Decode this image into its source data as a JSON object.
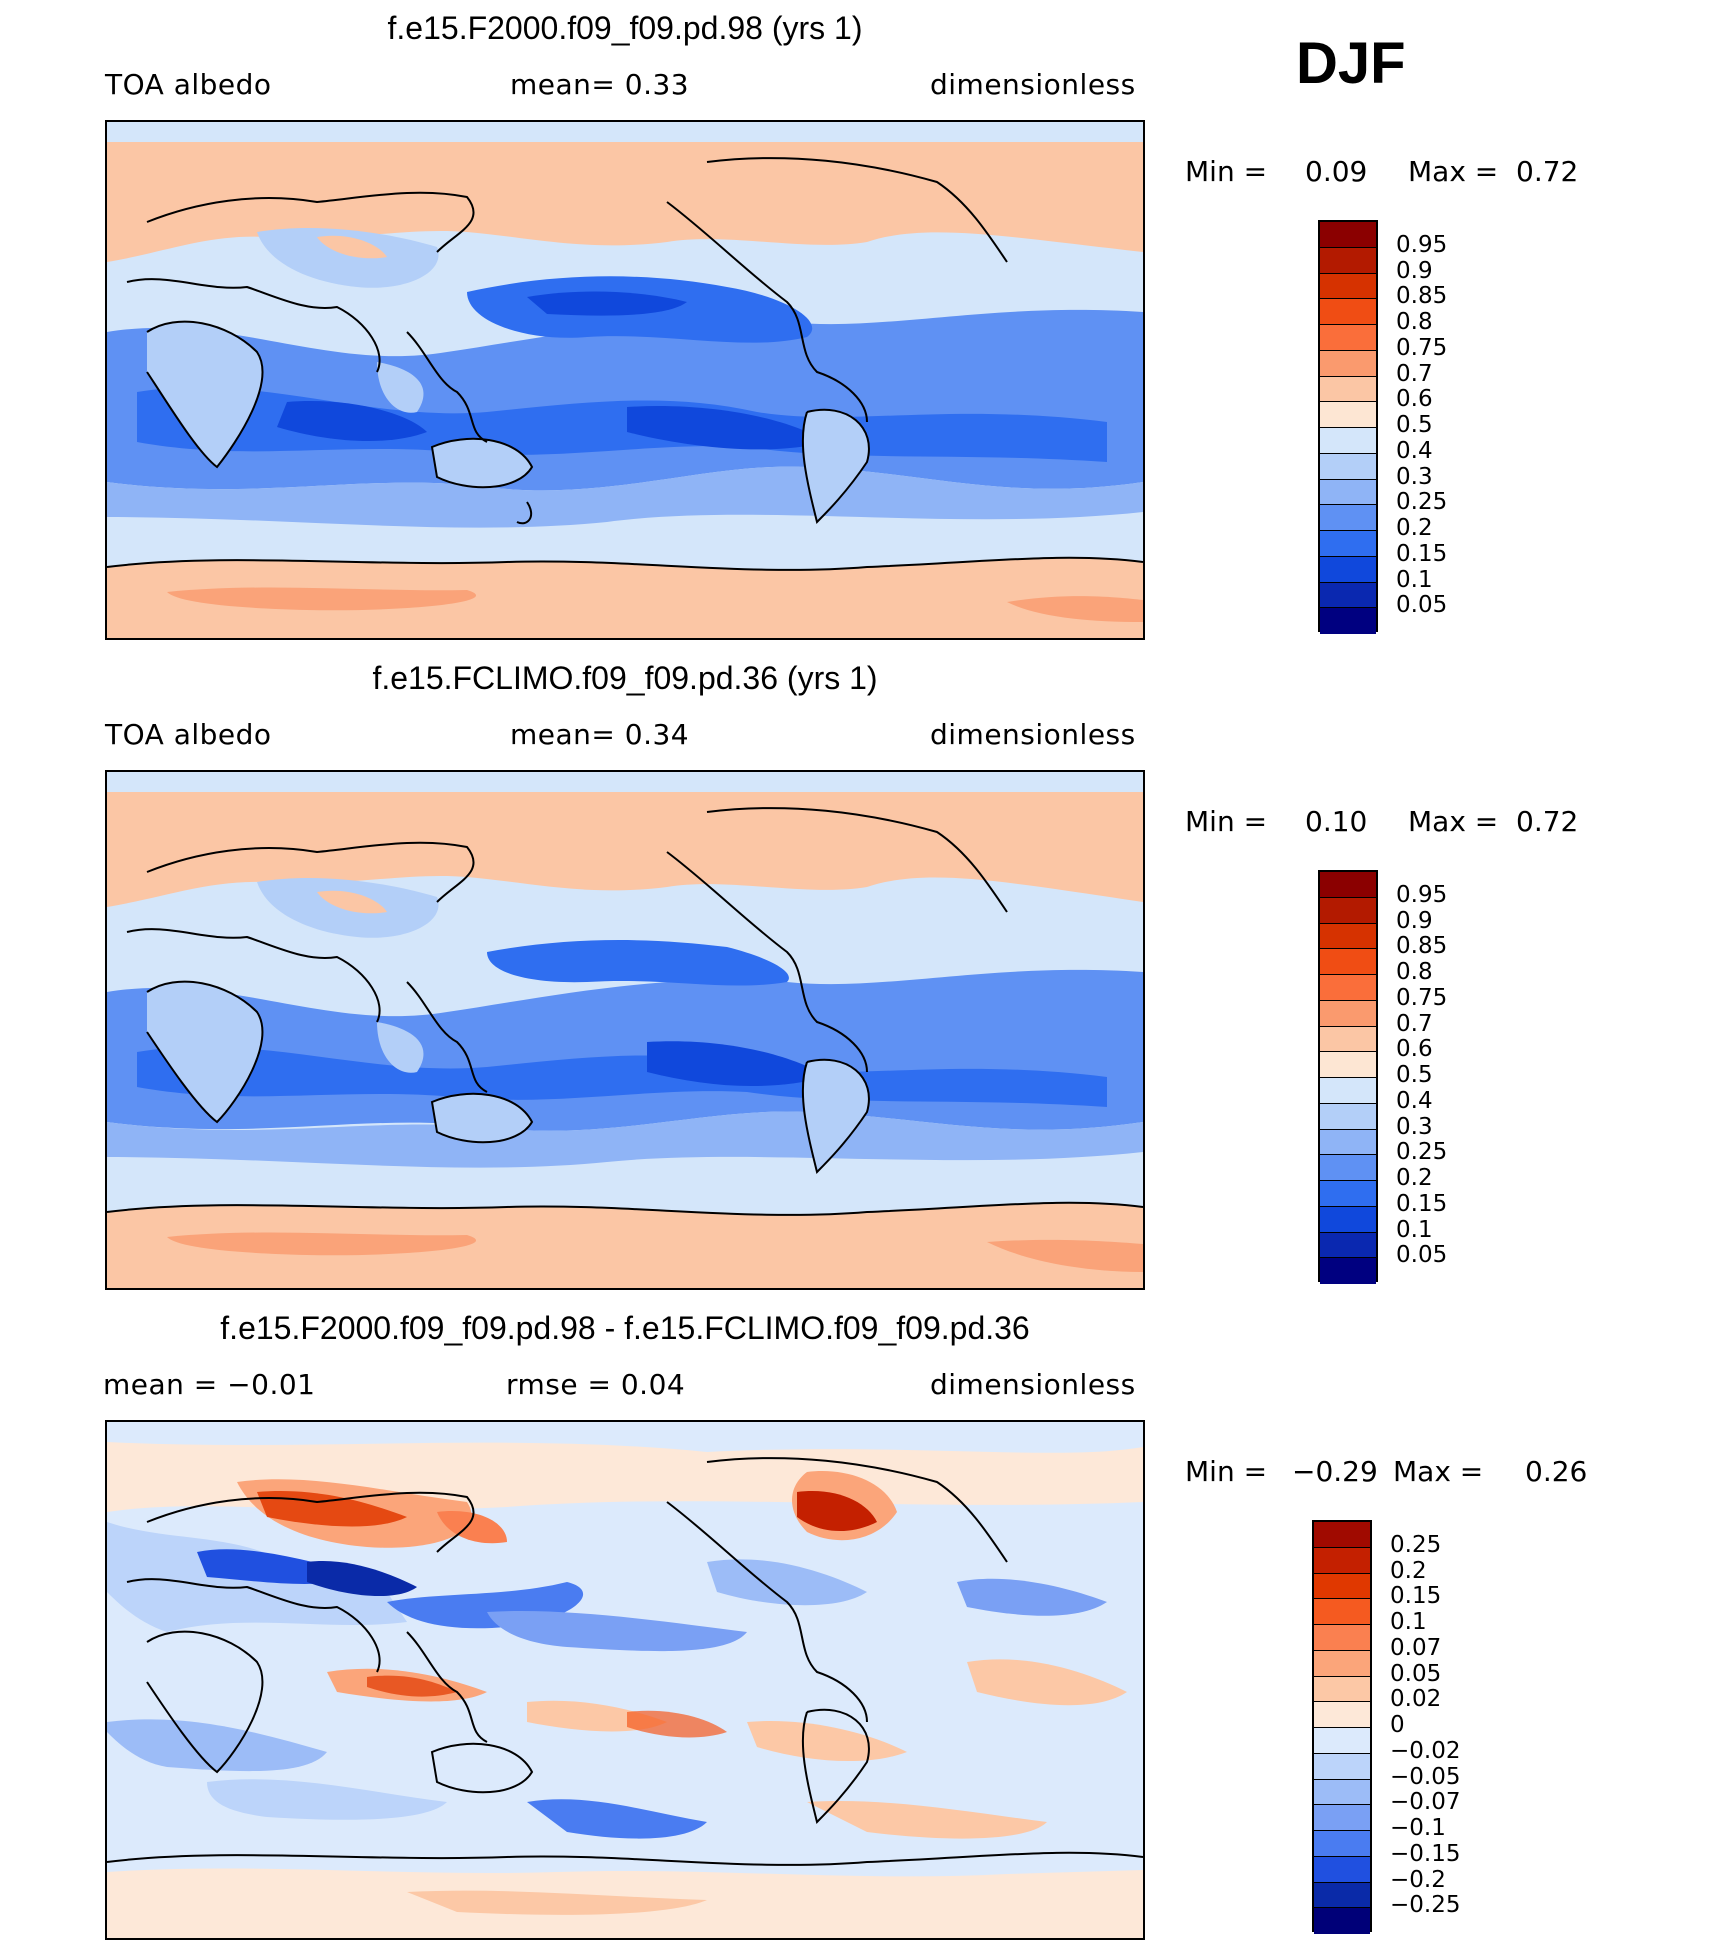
{
  "season": "DJF",
  "panels": [
    {
      "title": "f.e15.F2000.f09_f09.pd.98 (yrs 1)",
      "left_label": "TOA  albedo",
      "center_label": "mean=    0.33",
      "right_label": "dimensionless",
      "min_label": "Min  =",
      "min_value": "0.09",
      "max_label": "Max  =",
      "max_value": "0.72",
      "colorbar_labels": [
        "0.95",
        "0.9",
        "0.85",
        "0.8",
        "0.75",
        "0.7",
        "0.6",
        "0.5",
        "0.4",
        "0.3",
        "0.25",
        "0.2",
        "0.15",
        "0.1",
        "0.05"
      ],
      "colorbar_colors": [
        "#8b0000",
        "#b31a00",
        "#d63200",
        "#f04d14",
        "#fa6e3a",
        "#fa9a6e",
        "#fbc6a5",
        "#fde6d3",
        "#d4e6fa",
        "#b3cff8",
        "#8fb4f6",
        "#5f91f3",
        "#2f6ef0",
        "#1048dc",
        "#0a28b0",
        "#000080"
      ]
    },
    {
      "title": "f.e15.FCLIMO.f09_f09.pd.36 (yrs 1)",
      "left_label": "TOA  albedo",
      "center_label": "mean=    0.34",
      "right_label": "dimensionless",
      "min_label": "Min  =",
      "min_value": "0.10",
      "max_label": "Max  =",
      "max_value": "0.72",
      "colorbar_labels": [
        "0.95",
        "0.9",
        "0.85",
        "0.8",
        "0.75",
        "0.7",
        "0.6",
        "0.5",
        "0.4",
        "0.3",
        "0.25",
        "0.2",
        "0.15",
        "0.1",
        "0.05"
      ],
      "colorbar_colors": [
        "#8b0000",
        "#b31a00",
        "#d63200",
        "#f04d14",
        "#fa6e3a",
        "#fa9a6e",
        "#fbc6a5",
        "#fde6d3",
        "#d4e6fa",
        "#b3cff8",
        "#8fb4f6",
        "#5f91f3",
        "#2f6ef0",
        "#1048dc",
        "#0a28b0",
        "#000080"
      ]
    },
    {
      "title": "f.e15.F2000.f09_f09.pd.98 - f.e15.FCLIMO.f09_f09.pd.36",
      "left_label": "mean  =   −0.01",
      "center_label": "rmse  =    0.04",
      "right_label": "dimensionless",
      "min_label": "Min  =",
      "min_value": "−0.29",
      "max_label": "Max  =",
      "max_value": "0.26",
      "colorbar_labels": [
        "0.25",
        "0.2",
        "0.15",
        "0.1",
        "0.07",
        "0.05",
        "0.02",
        "0",
        "−0.02",
        "−0.05",
        "−0.07",
        "−0.1",
        "−0.15",
        "−0.2",
        "−0.25"
      ],
      "colorbar_colors": [
        "#a00a00",
        "#c42000",
        "#e03800",
        "#f55a20",
        "#fa8050",
        "#fba57a",
        "#fcc8a6",
        "#fde8d8",
        "#dceafc",
        "#bcd4fa",
        "#9cbcf7",
        "#7aa0f4",
        "#4a7cf1",
        "#2050e0",
        "#0a2aa8",
        "#000078"
      ]
    }
  ]
}
